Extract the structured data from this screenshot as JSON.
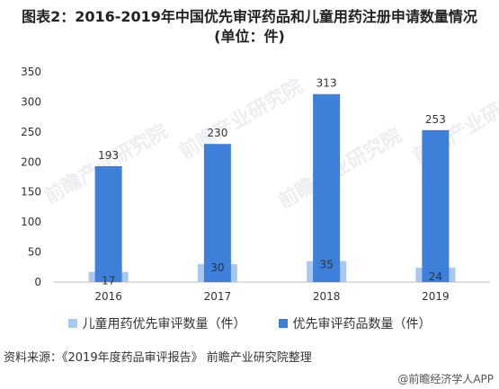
{
  "title_line1": "图表2：2016-2019年中国优先审评药品和儿童用药注册申请数量情况",
  "title_line2": "(单位：件)",
  "source": "资料来源：《2019年度药品审评报告》 前瞻产业研究院整理",
  "footer_brand": "@前瞻经济学人APP",
  "watermark_text": "前瞻产业研究院",
  "colors": {
    "child": "#a8c8f0",
    "priority": "#3d7fd9",
    "axis": "#bfbfbf",
    "text": "#333333"
  },
  "chart_data": {
    "type": "bar",
    "categories": [
      "2016",
      "2017",
      "2018",
      "2019"
    ],
    "series": [
      {
        "name": "儿童用药优先审评数量（件）",
        "values": [
          17,
          30,
          35,
          24
        ]
      },
      {
        "name": "优先审评药品数量（件）",
        "values": [
          193,
          230,
          313,
          253
        ]
      }
    ],
    "yticks": [
      "0",
      "50",
      "100",
      "150",
      "200",
      "250",
      "300",
      "350"
    ],
    "ylim": [
      0,
      350
    ],
    "grid": false,
    "legend_position": "bottom"
  }
}
